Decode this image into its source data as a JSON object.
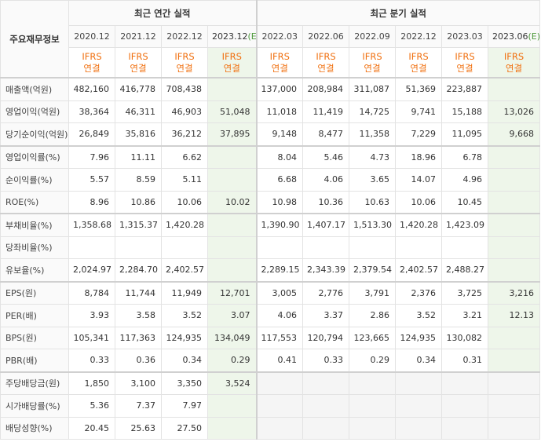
{
  "header": {
    "corner_label": "주요재무정보",
    "annual_group": "최근 연간 실적",
    "quarter_group": "최근 분기 실적",
    "periods": [
      {
        "label": "2020.12",
        "est": ""
      },
      {
        "label": "2021.12",
        "est": ""
      },
      {
        "label": "2022.12",
        "est": ""
      },
      {
        "label": "2023.12",
        "est": "(E)"
      },
      {
        "label": "2022.03",
        "est": ""
      },
      {
        "label": "2022.06",
        "est": ""
      },
      {
        "label": "2022.09",
        "est": ""
      },
      {
        "label": "2022.12",
        "est": ""
      },
      {
        "label": "2023.03",
        "est": ""
      },
      {
        "label": "2023.06",
        "est": "(E)"
      }
    ],
    "ifrs_top": "IFRS",
    "ifrs_bottom": "연결"
  },
  "rows": [
    {
      "label": "매출액(억원)",
      "values": [
        "482,160",
        "416,778",
        "708,438",
        "",
        "137,000",
        "208,984",
        "311,087",
        "51,369",
        "223,887",
        ""
      ]
    },
    {
      "label": "영업이익(억원)",
      "values": [
        "38,364",
        "46,311",
        "46,903",
        "51,048",
        "11,018",
        "11,419",
        "14,725",
        "9,741",
        "15,188",
        "13,026"
      ]
    },
    {
      "label": "당기순이익(억원)",
      "values": [
        "26,849",
        "35,816",
        "36,212",
        "37,895",
        "9,148",
        "8,477",
        "11,358",
        "7,229",
        "11,095",
        "9,668"
      ]
    },
    {
      "label": "영업이익률(%)",
      "values": [
        "7.96",
        "11.11",
        "6.62",
        "",
        "8.04",
        "5.46",
        "4.73",
        "18.96",
        "6.78",
        ""
      ]
    },
    {
      "label": "순이익률(%)",
      "values": [
        "5.57",
        "8.59",
        "5.11",
        "",
        "6.68",
        "4.06",
        "3.65",
        "14.07",
        "4.96",
        ""
      ]
    },
    {
      "label": "ROE(%)",
      "values": [
        "8.96",
        "10.86",
        "10.06",
        "10.02",
        "10.98",
        "10.36",
        "10.63",
        "10.06",
        "10.45",
        ""
      ]
    },
    {
      "label": "부채비율(%)",
      "values": [
        "1,358.68",
        "1,315.37",
        "1,420.28",
        "",
        "1,390.90",
        "1,407.17",
        "1,513.30",
        "1,420.28",
        "1,423.09",
        ""
      ]
    },
    {
      "label": "당좌비율(%)",
      "values": [
        "",
        "",
        "",
        "",
        "",
        "",
        "",
        "",
        "",
        ""
      ]
    },
    {
      "label": "유보율(%)",
      "values": [
        "2,024.97",
        "2,284.70",
        "2,402.57",
        "",
        "2,289.15",
        "2,343.39",
        "2,379.54",
        "2,402.57",
        "2,488.27",
        ""
      ]
    },
    {
      "label": "EPS(원)",
      "values": [
        "8,784",
        "11,744",
        "11,949",
        "12,701",
        "3,005",
        "2,776",
        "3,791",
        "2,376",
        "3,725",
        "3,216"
      ]
    },
    {
      "label": "PER(배)",
      "values": [
        "3.93",
        "3.58",
        "3.52",
        "3.07",
        "4.06",
        "3.37",
        "2.86",
        "3.52",
        "3.21",
        "12.13"
      ]
    },
    {
      "label": "BPS(원)",
      "values": [
        "105,341",
        "117,363",
        "124,935",
        "134,049",
        "117,553",
        "120,794",
        "123,665",
        "124,935",
        "130,082",
        ""
      ]
    },
    {
      "label": "PBR(배)",
      "values": [
        "0.33",
        "0.36",
        "0.34",
        "0.29",
        "0.41",
        "0.33",
        "0.29",
        "0.34",
        "0.31",
        ""
      ]
    },
    {
      "label": "주당배당금(원)",
      "values": [
        "1,850",
        "3,100",
        "3,350",
        "3,524",
        "",
        "",
        "",
        "",
        "",
        ""
      ]
    },
    {
      "label": "시가배당률(%)",
      "values": [
        "5.36",
        "7.37",
        "7.97",
        "",
        "",
        "",
        "",
        "",
        "",
        ""
      ]
    },
    {
      "label": "배당성향(%)",
      "values": [
        "20.45",
        "25.63",
        "27.50",
        "",
        "",
        "",
        "",
        "",
        "",
        ""
      ]
    }
  ]
}
